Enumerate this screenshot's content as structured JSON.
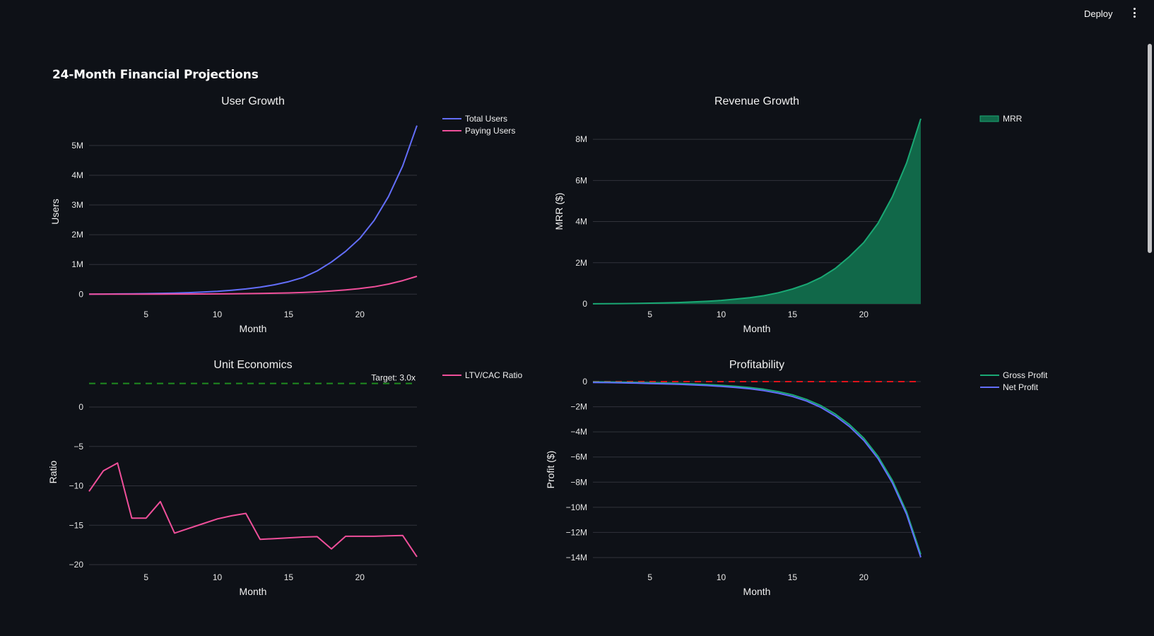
{
  "header": {
    "deploy_label": "Deploy",
    "menu_icon": "kebab-menu-icon"
  },
  "page": {
    "title": "24-Month Financial Projections"
  },
  "chart_data": [
    {
      "id": "user-growth",
      "type": "line",
      "title": "User Growth",
      "xlabel": "Month",
      "ylabel": "Users",
      "xlim": [
        1,
        24
      ],
      "ylim": [
        -0.35,
        5.9
      ],
      "y_unit": "M",
      "xticks": [
        5,
        10,
        15,
        20
      ],
      "yticks": [
        0,
        1,
        2,
        3,
        4,
        5
      ],
      "ytick_labels": [
        "0",
        "1M",
        "2M",
        "3M",
        "4M",
        "5M"
      ],
      "grid": true,
      "legend_position": "top-right-outside",
      "x": [
        1,
        2,
        3,
        4,
        5,
        6,
        7,
        8,
        9,
        10,
        11,
        12,
        13,
        14,
        15,
        16,
        17,
        18,
        19,
        20,
        21,
        22,
        23,
        24
      ],
      "series": [
        {
          "name": "Total Users",
          "color": "#636efa",
          "values": [
            0.001,
            0.004,
            0.008,
            0.013,
            0.019,
            0.027,
            0.038,
            0.052,
            0.07,
            0.095,
            0.13,
            0.175,
            0.235,
            0.315,
            0.42,
            0.56,
            0.78,
            1.08,
            1.44,
            1.88,
            2.48,
            3.28,
            4.31,
            5.67
          ]
        },
        {
          "name": "Paying Users",
          "color": "#ef4f9a",
          "values": [
            0.0001,
            0.0004,
            0.0008,
            0.0013,
            0.0019,
            0.0027,
            0.0038,
            0.0052,
            0.007,
            0.0095,
            0.013,
            0.0175,
            0.0235,
            0.0315,
            0.042,
            0.056,
            0.078,
            0.108,
            0.144,
            0.19,
            0.25,
            0.34,
            0.455,
            0.6
          ]
        }
      ]
    },
    {
      "id": "revenue-growth",
      "type": "area",
      "title": "Revenue Growth",
      "xlabel": "Month",
      "ylabel": "MRR ($)",
      "xlim": [
        1,
        24
      ],
      "ylim": [
        0,
        9.0
      ],
      "y_unit": "M",
      "xticks": [
        5,
        10,
        15,
        20
      ],
      "yticks": [
        0,
        2,
        4,
        6,
        8
      ],
      "ytick_labels": [
        "0",
        "2M",
        "4M",
        "6M",
        "8M"
      ],
      "grid": true,
      "legend_position": "top-right-outside",
      "x": [
        1,
        2,
        3,
        4,
        5,
        6,
        7,
        8,
        9,
        10,
        11,
        12,
        13,
        14,
        15,
        16,
        17,
        18,
        19,
        20,
        21,
        22,
        23,
        24
      ],
      "series": [
        {
          "name": "MRR",
          "color": "#1aa874",
          "fill": "#116849",
          "values": [
            0.003,
            0.008,
            0.014,
            0.022,
            0.033,
            0.047,
            0.066,
            0.092,
            0.125,
            0.17,
            0.23,
            0.3,
            0.4,
            0.54,
            0.72,
            0.96,
            1.28,
            1.72,
            2.3,
            2.98,
            3.92,
            5.2,
            6.84,
            9.0
          ]
        }
      ]
    },
    {
      "id": "unit-economics",
      "type": "line",
      "title": "Unit Economics",
      "xlabel": "Month",
      "ylabel": "Ratio",
      "xlim": [
        1,
        24
      ],
      "ylim": [
        -20,
        3.5
      ],
      "xticks": [
        5,
        10,
        15,
        20
      ],
      "yticks": [
        -20,
        -15,
        -10,
        -5,
        0
      ],
      "ytick_labels": [
        "−20",
        "−15",
        "−10",
        "−5",
        "0"
      ],
      "grid": true,
      "legend_position": "top-right-outside",
      "reference_line": {
        "y": 3.0,
        "label": "Target: 3.0x",
        "color": "#1f8b1f",
        "dash": "dashed"
      },
      "x": [
        1,
        2,
        3,
        4,
        5,
        6,
        7,
        8,
        9,
        10,
        11,
        12,
        13,
        14,
        15,
        16,
        17,
        18,
        19,
        20,
        21,
        22,
        23,
        24
      ],
      "series": [
        {
          "name": "LTV/CAC Ratio",
          "color": "#ef4f9a",
          "values": [
            -10.7,
            -8.1,
            -7.1,
            -14.1,
            -14.1,
            -12.0,
            -16.0,
            -15.4,
            -14.8,
            -14.2,
            -13.8,
            -13.5,
            -16.8,
            -16.7,
            -16.6,
            -16.5,
            -16.45,
            -18.0,
            -16.4,
            -16.4,
            -16.4,
            -16.35,
            -16.3,
            -19.0
          ]
        }
      ]
    },
    {
      "id": "profitability",
      "type": "line",
      "title": "Profitability",
      "xlabel": "Month",
      "ylabel": "Profit ($)",
      "xlim": [
        1,
        24
      ],
      "ylim": [
        -14.0,
        0
      ],
      "y_unit": "M",
      "xticks": [
        5,
        10,
        15,
        20
      ],
      "yticks": [
        -14,
        -12,
        -10,
        -8,
        -6,
        -4,
        -2,
        0
      ],
      "ytick_labels": [
        "−14M",
        "−12M",
        "−10M",
        "−8M",
        "−6M",
        "−4M",
        "−2M",
        "0"
      ],
      "grid": true,
      "legend_position": "top-right-outside",
      "reference_line": {
        "y": 0,
        "label": "",
        "color": "#e0131b",
        "dash": "dashed"
      },
      "x": [
        1,
        2,
        3,
        4,
        5,
        6,
        7,
        8,
        9,
        10,
        11,
        12,
        13,
        14,
        15,
        16,
        17,
        18,
        19,
        20,
        21,
        22,
        23,
        24
      ],
      "series": [
        {
          "name": "Gross Profit",
          "color": "#1aa874",
          "values": [
            -0.02,
            -0.03,
            -0.05,
            -0.07,
            -0.09,
            -0.11,
            -0.14,
            -0.18,
            -0.23,
            -0.29,
            -0.37,
            -0.47,
            -0.61,
            -0.8,
            -1.05,
            -1.42,
            -1.92,
            -2.58,
            -3.42,
            -4.5,
            -5.95,
            -7.85,
            -10.35,
            -13.75
          ]
        },
        {
          "name": "Net Profit",
          "color": "#636efa",
          "values": [
            -0.07,
            -0.08,
            -0.1,
            -0.12,
            -0.15,
            -0.18,
            -0.21,
            -0.26,
            -0.31,
            -0.38,
            -0.46,
            -0.57,
            -0.72,
            -0.92,
            -1.18,
            -1.55,
            -2.06,
            -2.73,
            -3.58,
            -4.67,
            -6.13,
            -8.05,
            -10.55,
            -13.98
          ]
        }
      ]
    }
  ]
}
